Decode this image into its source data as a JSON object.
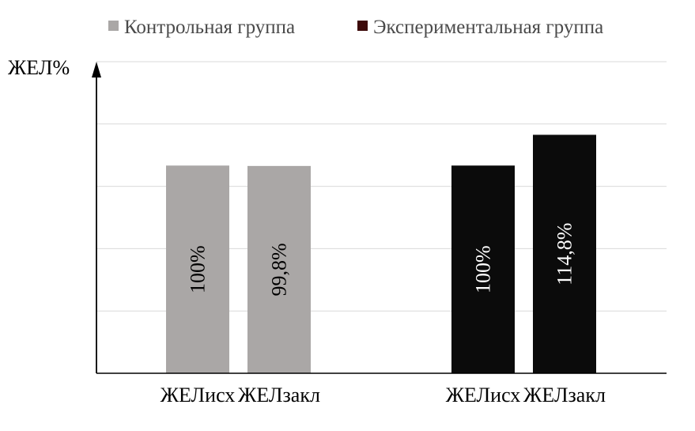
{
  "chart_data": {
    "type": "bar",
    "title": "",
    "ylabel": "ЖЕЛ%",
    "xlabel": "",
    "ylim": [
      0,
      150
    ],
    "gridlines": [
      30,
      60,
      90,
      120,
      150
    ],
    "grid": true,
    "legend_position": "top",
    "legend": [
      {
        "label": "Контрольная группа",
        "color": "#aaa7a6"
      },
      {
        "label": "Экспериментальная группа",
        "color": "#3d0a0a"
      }
    ],
    "groups": [
      {
        "series": "Контрольная группа",
        "color": "#aaa7a6",
        "label_color": "#000000",
        "bars": [
          {
            "category": "ЖЕЛисх",
            "value": 100,
            "label": "100%"
          },
          {
            "category": "ЖЕЛзакл",
            "value": 99.8,
            "label": "99,8%"
          }
        ]
      },
      {
        "series": "Экспериментальная группа",
        "color": "#0b0b0b",
        "label_color": "#ffffff",
        "bars": [
          {
            "category": "ЖЕЛисх",
            "value": 100,
            "label": "100%"
          },
          {
            "category": "ЖЕЛзакл",
            "value": 114.8,
            "label": "114,8%"
          }
        ]
      }
    ]
  }
}
